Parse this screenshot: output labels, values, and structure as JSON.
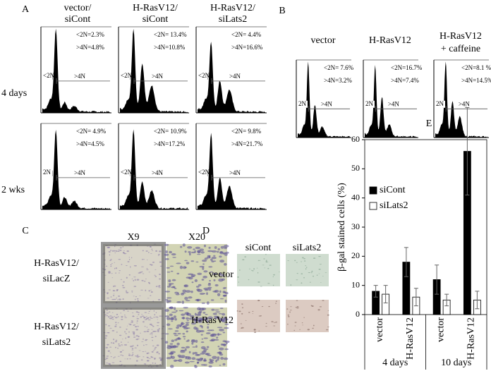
{
  "panel_a": {
    "label": "A",
    "columns": [
      [
        "vector/",
        "siCont"
      ],
      [
        "H-RasV12/",
        "siCont"
      ],
      [
        "H-RasV12/",
        "siLats2"
      ]
    ],
    "rows": [
      "4 days",
      "2 wks"
    ],
    "histograms": [
      [
        {
          "stats": [
            "<2N=2.3%",
            ">4N=4.8%"
          ],
          "gates": [
            "<2N",
            ">4N"
          ]
        },
        {
          "stats": [
            "<2N= 13.4%",
            ">4N=10.8%"
          ],
          "gates": [
            "<2N",
            ">4N"
          ]
        },
        {
          "stats": [
            "<2N= 4.4%",
            ">4N=16.6%"
          ],
          "gates": [
            "<2N",
            ">4N"
          ]
        }
      ],
      [
        {
          "stats": [
            "<2N= 4.9%",
            ">4N=4.5%"
          ],
          "gates": [
            "2N",
            ">4N"
          ]
        },
        {
          "stats": [
            "<2N= 10.9%",
            ">4N=17.2%"
          ],
          "gates": [
            "<2N",
            ">4N"
          ]
        },
        {
          "stats": [
            "<2N= 9.8%",
            ">4N=21.7%"
          ],
          "gates": [
            "<2N",
            ">4N"
          ]
        }
      ]
    ]
  },
  "panel_b": {
    "label": "B",
    "columns": [
      [
        "vector"
      ],
      [
        "H-RasV12"
      ],
      [
        "H-RasV12",
        "+ caffeine"
      ]
    ],
    "histograms": [
      {
        "stats": [
          "<2N= 7.6%",
          ">4N=3.2%"
        ],
        "gates": [
          "2N",
          ">4N"
        ]
      },
      {
        "stats": [
          "<2N=16.7%",
          ">4N=7.4%"
        ],
        "gates": [
          "2N",
          ">4N"
        ]
      },
      {
        "stats": [
          "<2N=8.1 %",
          ">4N=14.5%"
        ],
        "gates": [
          "2N",
          ">4N"
        ]
      }
    ]
  },
  "panel_c": {
    "label": "C",
    "columns": [
      "X9",
      "X20"
    ],
    "rows": [
      [
        "H-RasV12/",
        "siLacZ"
      ],
      [
        "H-RasV12/",
        "siLats2"
      ]
    ]
  },
  "panel_d": {
    "label": "D",
    "columns": [
      "siCont",
      "siLats2"
    ],
    "rows": [
      "vector",
      "H-RasV12"
    ]
  },
  "chart_data": {
    "type": "bar",
    "label": "E",
    "y_label": "β-gal stained cells (%)",
    "categories": [
      "vector",
      "H-RasV12",
      "vector",
      "H-RasV12"
    ],
    "group_labels": [
      "4 days",
      "10 days"
    ],
    "series": [
      {
        "name": "siCont",
        "color": "#000000",
        "values": [
          8,
          18,
          12,
          56
        ],
        "errors": [
          2,
          5,
          5,
          15
        ]
      },
      {
        "name": "siLats2",
        "color": "#ffffff",
        "values": [
          7,
          6,
          5,
          5
        ],
        "errors": [
          3,
          3,
          2,
          3
        ]
      }
    ],
    "ylim": [
      0,
      60
    ],
    "yticks": [
      0,
      10,
      20,
      30,
      40,
      50,
      60
    ]
  }
}
